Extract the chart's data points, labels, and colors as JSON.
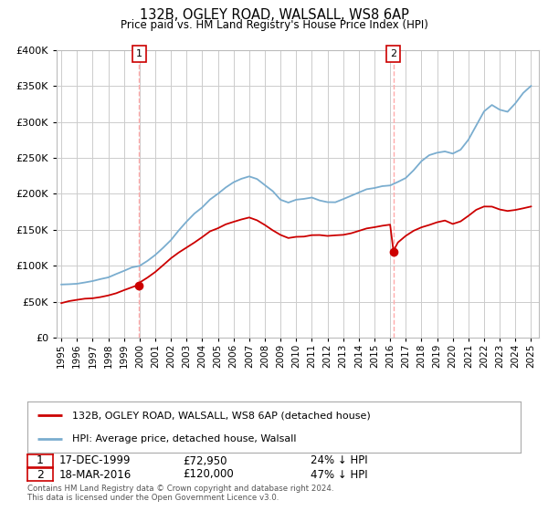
{
  "title": "132B, OGLEY ROAD, WALSALL, WS8 6AP",
  "subtitle": "Price paid vs. HM Land Registry's House Price Index (HPI)",
  "legend_label_red": "132B, OGLEY ROAD, WALSALL, WS8 6AP (detached house)",
  "legend_label_blue": "HPI: Average price, detached house, Walsall",
  "annotation1_date": "17-DEC-1999",
  "annotation1_price": "£72,950",
  "annotation1_hpi": "24% ↓ HPI",
  "annotation2_date": "18-MAR-2016",
  "annotation2_price": "£120,000",
  "annotation2_hpi": "47% ↓ HPI",
  "footer": "Contains HM Land Registry data © Crown copyright and database right 2024.\nThis data is licensed under the Open Government Licence v3.0.",
  "ylim": [
    0,
    400000
  ],
  "yticks": [
    0,
    50000,
    100000,
    150000,
    200000,
    250000,
    300000,
    350000,
    400000
  ],
  "background_color": "#ffffff",
  "grid_color": "#cccccc",
  "red_color": "#cc0000",
  "blue_color": "#7aadcf",
  "vline_color": "#ffaaaa",
  "sale1_year": 1999.96,
  "sale1_value": 72950,
  "sale2_year": 2016.21,
  "sale2_value": 120000,
  "hpi_years": [
    1995,
    1995.5,
    1996,
    1996.5,
    1997,
    1997.5,
    1998,
    1998.5,
    1999,
    1999.5,
    2000,
    2000.5,
    2001,
    2001.5,
    2002,
    2002.5,
    2003,
    2003.5,
    2004,
    2004.5,
    2005,
    2005.5,
    2006,
    2006.5,
    2007,
    2007.5,
    2008,
    2008.5,
    2009,
    2009.5,
    2010,
    2010.5,
    2011,
    2011.5,
    2012,
    2012.5,
    2013,
    2013.5,
    2014,
    2014.5,
    2015,
    2015.5,
    2016,
    2016.5,
    2017,
    2017.5,
    2018,
    2018.5,
    2019,
    2019.5,
    2020,
    2020.5,
    2021,
    2021.5,
    2022,
    2022.5,
    2023,
    2023.5,
    2024,
    2024.5,
    2025
  ],
  "hpi_values": [
    72000,
    73500,
    75000,
    77000,
    79000,
    82000,
    85000,
    89000,
    93000,
    97000,
    100000,
    107000,
    115000,
    125000,
    137000,
    150000,
    162000,
    172000,
    182000,
    192000,
    200000,
    208000,
    215000,
    220000,
    224000,
    222000,
    215000,
    205000,
    193000,
    188000,
    192000,
    194000,
    195000,
    193000,
    190000,
    191000,
    193000,
    196000,
    200000,
    205000,
    208000,
    210000,
    212000,
    218000,
    225000,
    235000,
    245000,
    252000,
    256000,
    258000,
    255000,
    260000,
    275000,
    295000,
    315000,
    325000,
    318000,
    315000,
    325000,
    340000,
    350000
  ],
  "red_years": [
    1995,
    1995.5,
    1996,
    1996.5,
    1997,
    1997.5,
    1998,
    1998.5,
    1999,
    1999.5,
    1999.96,
    2000,
    2000.5,
    2001,
    2001.5,
    2002,
    2002.5,
    2003,
    2003.5,
    2004,
    2004.5,
    2005,
    2005.5,
    2006,
    2006.5,
    2007,
    2007.5,
    2008,
    2008.5,
    2009,
    2009.5,
    2010,
    2010.5,
    2011,
    2011.5,
    2012,
    2012.5,
    2013,
    2013.5,
    2014,
    2014.5,
    2015,
    2015.5,
    2016,
    2016.21,
    2016.5,
    2017,
    2017.5,
    2018,
    2018.5,
    2019,
    2019.5,
    2020,
    2020.5,
    2021,
    2021.5,
    2022,
    2022.5,
    2023,
    2023.5,
    2024,
    2024.5,
    2025
  ],
  "red_values": [
    50000,
    51000,
    52000,
    54000,
    56000,
    58000,
    60000,
    63000,
    66000,
    70000,
    72950,
    76000,
    82000,
    90000,
    100000,
    110000,
    118000,
    126000,
    133000,
    140000,
    147000,
    152000,
    158000,
    162000,
    165000,
    167000,
    162000,
    155000,
    148000,
    142000,
    138000,
    140000,
    141000,
    143000,
    142000,
    140000,
    141000,
    143000,
    146000,
    149000,
    152000,
    154000,
    156000,
    158000,
    120000,
    132000,
    140000,
    148000,
    153000,
    157000,
    160000,
    162000,
    158000,
    162000,
    170000,
    178000,
    183000,
    182000,
    178000,
    176000,
    178000,
    180000,
    182000
  ]
}
